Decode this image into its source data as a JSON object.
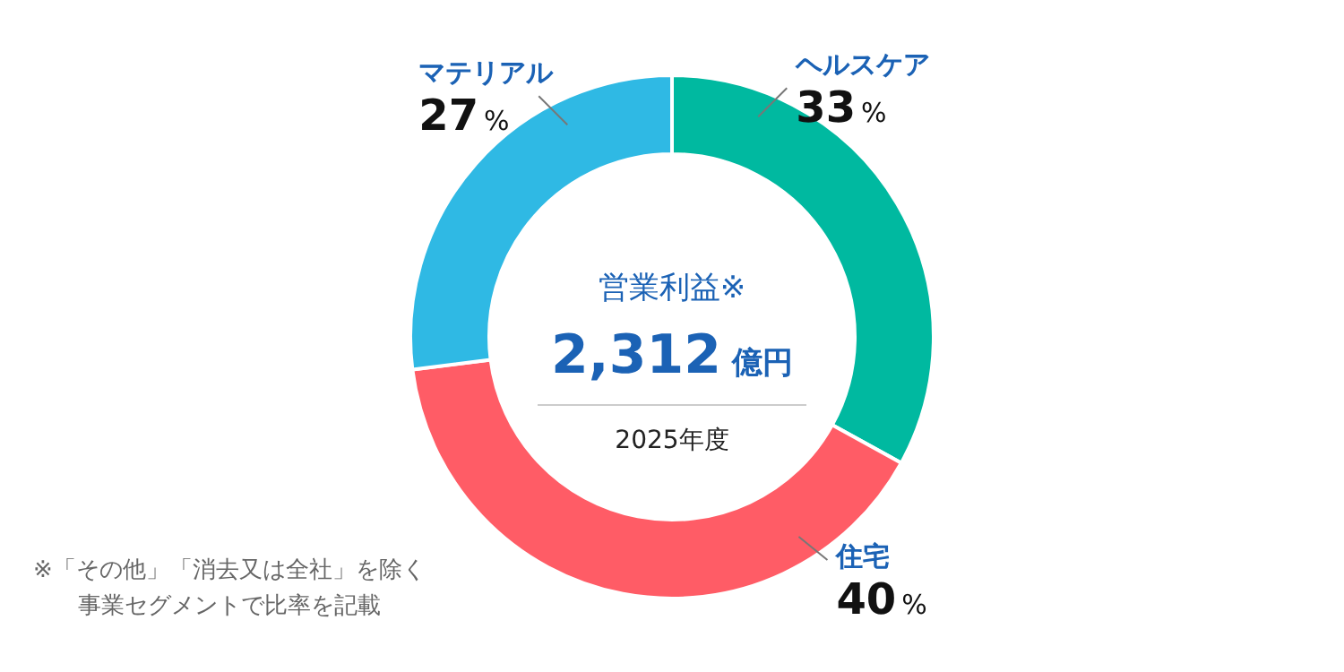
{
  "chart_data": {
    "type": "donut",
    "title": "営業利益※",
    "subtitle": "2,312 億円",
    "categories": [
      "ヘルスケア",
      "住宅",
      "マテリアル"
    ],
    "values": [
      33,
      40,
      27
    ],
    "colors": [
      "#00b9a0",
      "#ff5c66",
      "#2fb9e4"
    ],
    "value_labels": [
      "33%",
      "40%",
      "27%"
    ],
    "annotations": [
      "2025年度",
      "※「その他」「消去又は全社」を除く事業セグメントで比率を記載"
    ]
  }
}
